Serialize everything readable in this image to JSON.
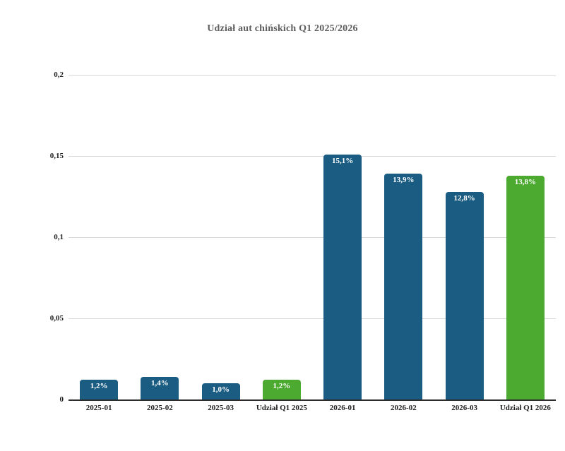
{
  "page": {
    "background": "#ffffff"
  },
  "colors": {
    "bar_monthly_blue": "#1b5d82",
    "bar_quarter_green": "#4caa31",
    "gridline": "#d8d8d8",
    "axis_line": "#2d2d2d",
    "title_text": "#5e5e5e",
    "tick_text": "#1f1f1f",
    "value_label_text": "#ffffff"
  },
  "chart_data": {
    "type": "bar",
    "title": "Udział aut chińskich Q1 2025/2026",
    "xlabel": "",
    "ylabel": "",
    "categories": [
      "2025-01",
      "2025-02",
      "2025-03",
      "Udział Q1 2025",
      "2026-01",
      "2026-02",
      "2026-03",
      "Udział Q1 2026"
    ],
    "values": [
      0.012,
      0.014,
      0.01,
      0.012,
      0.151,
      0.139,
      0.128,
      0.138
    ],
    "value_labels": [
      "1,2%",
      "1,4%",
      "1,0%",
      "1,2%",
      "15,1%",
      "13,9%",
      "12,8%",
      "13,8%"
    ],
    "bar_colors": [
      "#1b5d82",
      "#1b5d82",
      "#1b5d82",
      "#4caa31",
      "#1b5d82",
      "#1b5d82",
      "#1b5d82",
      "#4caa31"
    ],
    "ylim": [
      0,
      0.2
    ],
    "yticks": [
      {
        "value": 0,
        "label": "0"
      },
      {
        "value": 0.05,
        "label": "0,05"
      },
      {
        "value": 0.1,
        "label": "0,1"
      },
      {
        "value": 0.15,
        "label": "0,15"
      },
      {
        "value": 0.2,
        "label": "0,2"
      }
    ],
    "grid": true,
    "legend": false
  }
}
